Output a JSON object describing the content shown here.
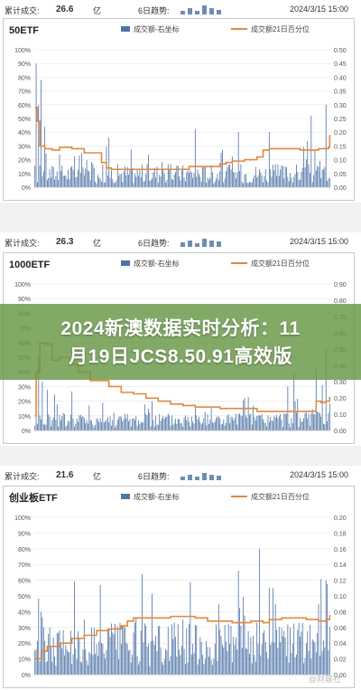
{
  "panels": [
    {
      "stats": {
        "label": "累计成交:",
        "value": "26.6",
        "unit": "亿",
        "trend_label": "6日趋势:",
        "date": "2024/3/15 15:00"
      },
      "trend_bars": [
        0.35,
        0.55,
        0.3,
        0.8,
        0.6,
        0.45
      ]
    },
    {
      "stats": {
        "label": "累计成交:",
        "value": "26.3",
        "unit": "亿",
        "trend_label": "6日趋势:",
        "date": "2024/3/15 15:00"
      },
      "trend_bars": [
        0.4,
        0.6,
        0.3,
        0.75,
        0.55,
        0.5
      ]
    },
    {
      "stats": {
        "label": "累计成交:",
        "value": "21.6",
        "unit": "亿",
        "trend_label": "6日趋势:",
        "date": "2024/3/15 15:00"
      },
      "trend_bars": [
        0.3,
        0.5,
        0.35,
        0.7,
        0.5,
        0.45
      ]
    }
  ],
  "overlay": {
    "line1": "2024新澳数据实时分析：11",
    "line2": "月19日JCS8.50.91高效版"
  },
  "watermark": "@财联社",
  "colors": {
    "bar": "#4f74a8",
    "line": "#e0893f",
    "grid": "#e6e6e6",
    "axis_text": "#555555",
    "overlay": "#6b9645"
  },
  "chart_data": [
    {
      "type": "bar",
      "title": "50ETF",
      "legend": [
        "成交额-右坐标",
        "成交额21日百分位"
      ],
      "legend_position": "top",
      "left_axis": {
        "ylim": [
          0,
          100
        ],
        "ticks": [
          "0%",
          "10%",
          "20%",
          "30%",
          "40%",
          "50%",
          "60%",
          "70%",
          "80%",
          "90%",
          "100%"
        ]
      },
      "right_axis": {
        "ylim": [
          0,
          0.5
        ],
        "ticks": [
          "0.00",
          "0.05",
          "0.10",
          "0.15",
          "0.20",
          "0.25",
          "0.30",
          "0.35",
          "0.40",
          "0.45",
          "0.50"
        ]
      },
      "grid": true,
      "series": [
        {
          "name": "成交额-右坐标",
          "axis": "right",
          "n_bars": 240,
          "peaks": [
            [
              1,
              0.45
            ],
            [
              3,
              0.3
            ],
            [
              5,
              0.39
            ],
            [
              8,
              0.22
            ],
            [
              60,
              0.18
            ],
            [
              130,
              0.21
            ],
            [
              165,
              0.2
            ],
            [
              190,
              0.2
            ],
            [
              224,
              0.26
            ],
            [
              236,
              0.3
            ]
          ],
          "base": 0.045
        },
        {
          "name": "成交额21日百分位",
          "axis": "left",
          "points": [
            [
              0,
              58
            ],
            [
              2,
              48
            ],
            [
              4,
              30
            ],
            [
              8,
              28
            ],
            [
              14,
              27
            ],
            [
              20,
              29
            ],
            [
              30,
              28
            ],
            [
              40,
              25
            ],
            [
              48,
              25
            ],
            [
              54,
              18
            ],
            [
              58,
              14
            ],
            [
              62,
              13
            ],
            [
              80,
              13
            ],
            [
              100,
              13
            ],
            [
              120,
              13
            ],
            [
              125,
              15
            ],
            [
              130,
              15
            ],
            [
              150,
              17
            ],
            [
              155,
              18
            ],
            [
              160,
              19
            ],
            [
              170,
              20
            ],
            [
              180,
              22
            ],
            [
              185,
              27
            ],
            [
              190,
              28
            ],
            [
              200,
              28
            ],
            [
              215,
              27
            ],
            [
              230,
              28
            ],
            [
              235,
              28
            ],
            [
              238,
              29
            ],
            [
              239,
              38
            ]
          ]
        }
      ]
    },
    {
      "type": "bar",
      "title": "1000ETF",
      "legend": [
        "成交额-右坐标",
        "成交额21日百分位"
      ],
      "legend_position": "top",
      "left_axis": {
        "ylim": [
          0,
          100
        ],
        "ticks": [
          "0%",
          "10%",
          "20%",
          "30%",
          "40%",
          "50%",
          "60%",
          "70%",
          "80%",
          "90%",
          "100%"
        ]
      },
      "right_axis": {
        "ylim": [
          0,
          0.9
        ],
        "ticks": [
          "0.00",
          "0.10",
          "0.20",
          "0.30",
          "0.40",
          "0.50",
          "0.60",
          "0.70",
          "0.80",
          "0.90"
        ]
      },
      "grid": true,
      "series": [
        {
          "name": "成交额-右坐标",
          "axis": "right",
          "n_bars": 240,
          "peaks": [
            [
              3,
              0.45
            ],
            [
              6,
              0.3
            ],
            [
              10,
              0.25
            ],
            [
              16,
              0.22
            ],
            [
              30,
              0.24
            ],
            [
              95,
              0.18
            ],
            [
              170,
              0.2
            ],
            [
              205,
              0.27
            ],
            [
              210,
              0.35
            ],
            [
              228,
              0.38
            ],
            [
              233,
              0.28
            ],
            [
              236,
              0.5
            ]
          ],
          "base": 0.06
        },
        {
          "name": "成交额21日百分位",
          "axis": "left",
          "points": [
            [
              0,
              10
            ],
            [
              1,
              40
            ],
            [
              4,
              60
            ],
            [
              8,
              59
            ],
            [
              14,
              48
            ],
            [
              20,
              50
            ],
            [
              28,
              45
            ],
            [
              35,
              40
            ],
            [
              45,
              34
            ],
            [
              60,
              30
            ],
            [
              70,
              26
            ],
            [
              80,
              25
            ],
            [
              90,
              22
            ],
            [
              100,
              20
            ],
            [
              110,
              18
            ],
            [
              120,
              17
            ],
            [
              130,
              16
            ],
            [
              150,
              15
            ],
            [
              170,
              15
            ],
            [
              180,
              13
            ],
            [
              210,
              13
            ],
            [
              225,
              13
            ],
            [
              228,
              20
            ],
            [
              232,
              19
            ],
            [
              236,
              20
            ],
            [
              239,
              23
            ]
          ]
        }
      ]
    },
    {
      "type": "bar",
      "title": "创业板ETF",
      "legend": [
        "成交额-右坐标",
        "成交额21日百分位"
      ],
      "legend_position": "top",
      "left_axis": {
        "ylim": [
          0,
          100
        ],
        "ticks": [
          "0%",
          "10%",
          "20%",
          "30%",
          "40%",
          "50%",
          "60%",
          "70%",
          "80%",
          "90%",
          "100%"
        ]
      },
      "right_axis": {
        "ylim": [
          0,
          0.2
        ],
        "ticks": [
          "0.00",
          "0.02",
          "0.04",
          "0.06",
          "0.08",
          "0.10",
          "0.12",
          "0.14",
          "0.16",
          "0.18",
          "0.20"
        ]
      },
      "grid": true,
      "series": [
        {
          "name": "成交额-右坐标",
          "axis": "right",
          "n_bars": 240,
          "peaks": [
            [
              5,
              0.08
            ],
            [
              40,
              0.07
            ],
            [
              120,
              0.07
            ],
            [
              170,
              0.075
            ],
            [
              182,
              0.16
            ],
            [
              190,
              0.11
            ],
            [
              195,
              0.09
            ],
            [
              230,
              0.09
            ],
            [
              236,
              0.12
            ]
          ],
          "base": 0.035
        },
        {
          "name": "成交额21日百分位",
          "axis": "left",
          "points": [
            [
              0,
              10
            ],
            [
              5,
              15
            ],
            [
              10,
              18
            ],
            [
              20,
              20
            ],
            [
              30,
              23
            ],
            [
              40,
              25
            ],
            [
              50,
              28
            ],
            [
              60,
              29
            ],
            [
              70,
              31
            ],
            [
              75,
              34
            ],
            [
              80,
              36
            ],
            [
              100,
              36
            ],
            [
              110,
              37
            ],
            [
              130,
              36
            ],
            [
              140,
              34
            ],
            [
              160,
              33
            ],
            [
              175,
              34
            ],
            [
              185,
              33
            ],
            [
              190,
              35
            ],
            [
              200,
              36
            ],
            [
              220,
              35
            ],
            [
              230,
              34
            ],
            [
              236,
              35
            ],
            [
              239,
              38
            ]
          ]
        }
      ]
    }
  ]
}
